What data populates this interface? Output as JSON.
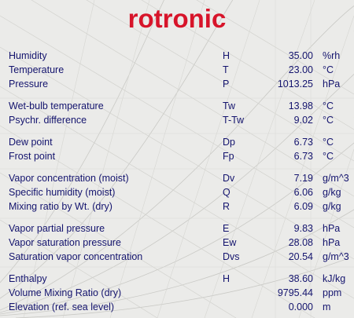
{
  "brand": {
    "logo_text": "rotronic"
  },
  "groups": [
    [
      {
        "label": "Humidity",
        "symbol": "H",
        "value": "35.00",
        "unit": "%rh"
      },
      {
        "label": "Temperature",
        "symbol": "T",
        "value": "23.00",
        "unit": "°C"
      },
      {
        "label": "Pressure",
        "symbol": "P",
        "value": "1013.25",
        "unit": "hPa"
      }
    ],
    [
      {
        "label": "Wet-bulb temperature",
        "symbol": "Tw",
        "value": "13.98",
        "unit": "°C"
      },
      {
        "label": "Psychr. difference",
        "symbol": "T-Tw",
        "value": "9.02",
        "unit": "°C"
      }
    ],
    [
      {
        "label": "Dew point",
        "symbol": "Dp",
        "value": "6.73",
        "unit": "°C"
      },
      {
        "label": "Frost point",
        "symbol": "Fp",
        "value": "6.73",
        "unit": "°C"
      }
    ],
    [
      {
        "label": "Vapor concentration (moist)",
        "symbol": "Dv",
        "value": "7.19",
        "unit": "g/m^3"
      },
      {
        "label": "Specific humidity (moist)",
        "symbol": "Q",
        "value": "6.06",
        "unit": "g/kg"
      },
      {
        "label": "Mixing ratio by Wt. (dry)",
        "symbol": "R",
        "value": "6.09",
        "unit": "g/kg"
      }
    ],
    [
      {
        "label": "Vapor partial pressure",
        "symbol": "E",
        "value": "9.83",
        "unit": "hPa"
      },
      {
        "label": "Vapor saturation pressure",
        "symbol": "Ew",
        "value": "28.08",
        "unit": "hPa"
      },
      {
        "label": "Saturation vapor concentration",
        "symbol": "Dvs",
        "value": "20.54",
        "unit": "g/m^3"
      }
    ],
    [
      {
        "label": "Enthalpy",
        "symbol": "H",
        "value": "38.60",
        "unit": "kJ/kg"
      },
      {
        "label": "Volume Mixing Ratio (dry)",
        "symbol": "",
        "value": "9795.44",
        "unit": "ppm"
      },
      {
        "label": "Elevation (ref. sea level)",
        "symbol": "",
        "value": "0.000",
        "unit": "m"
      }
    ]
  ]
}
